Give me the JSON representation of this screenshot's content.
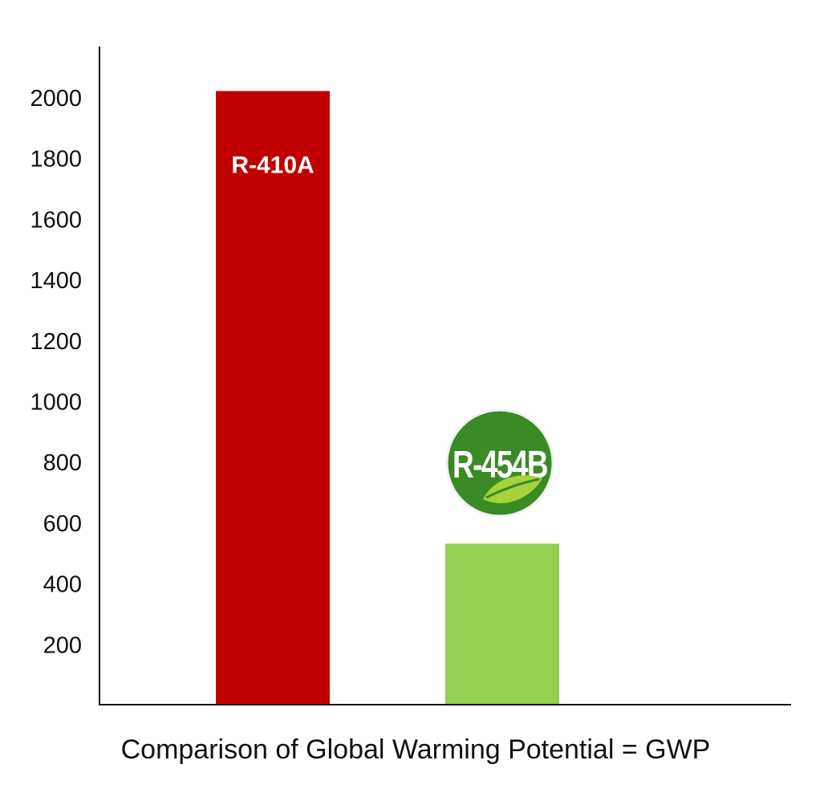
{
  "chart_data": {
    "type": "bar",
    "categories": [
      "R-410A",
      "R-454B"
    ],
    "values": [
      2020,
      530
    ],
    "ylim": [
      0,
      2200
    ],
    "yticks": [
      200,
      400,
      600,
      800,
      1000,
      1200,
      1400,
      1600,
      1800,
      2000
    ],
    "xlabel": "Comparison of Global Warming Potential = GWP",
    "ylabel": "",
    "grid": false,
    "bar_colors": [
      "#c00000",
      "#92d050"
    ],
    "bar_labels": [
      "R-410A",
      ""
    ],
    "badge": {
      "text": "R-454B",
      "fill": "#3a8a25",
      "leaf_color": "#a6d23c",
      "icon": "leaf-icon"
    }
  }
}
